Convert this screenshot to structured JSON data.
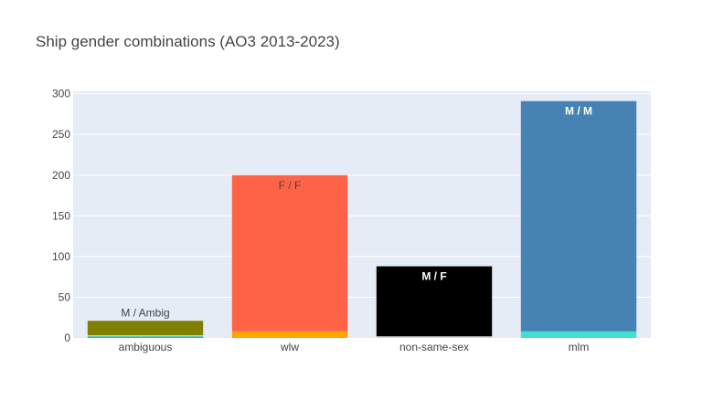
{
  "chart_data": {
    "type": "bar",
    "title": "Ship gender combinations (AO3 2013-2023)",
    "xlabel": "",
    "ylabel": "",
    "categories": [
      "ambiguous",
      "wlw",
      "non-same-sex",
      "mlm"
    ],
    "ylim": [
      0,
      303
    ],
    "yticks": [
      0,
      50,
      100,
      150,
      200,
      250,
      300
    ],
    "barmode": "stacked",
    "grid": true,
    "plot_background": "#e5ecf6",
    "bars": [
      {
        "category": "ambiguous",
        "segments": [
          {
            "value": 2,
            "color": "#20b2aa"
          },
          {
            "value": 1,
            "color": "#ffffff"
          },
          {
            "value": 18,
            "color": "#808000",
            "label": "M / Ambig",
            "label_position": "outside",
            "label_color": "#444444",
            "label_bold": false
          }
        ]
      },
      {
        "category": "wlw",
        "segments": [
          {
            "value": 8,
            "color": "#ffa500"
          },
          {
            "value": 192,
            "color": "#ff6347",
            "label": "F / F",
            "label_position": "inside",
            "label_color": "#444444",
            "label_bold": false
          }
        ]
      },
      {
        "category": "non-same-sex",
        "segments": [
          {
            "value": 2,
            "color": "#d3d3d3"
          },
          {
            "value": 86,
            "color": "#000000",
            "label": "M / F",
            "label_position": "inside",
            "label_color": "#ffffff",
            "label_bold": true
          }
        ]
      },
      {
        "category": "mlm",
        "segments": [
          {
            "value": 8,
            "color": "#40e0d0"
          },
          {
            "value": 283,
            "color": "#4682b4",
            "label": "M / M",
            "label_position": "inside",
            "label_color": "#ffffff",
            "label_bold": true
          }
        ]
      }
    ]
  }
}
